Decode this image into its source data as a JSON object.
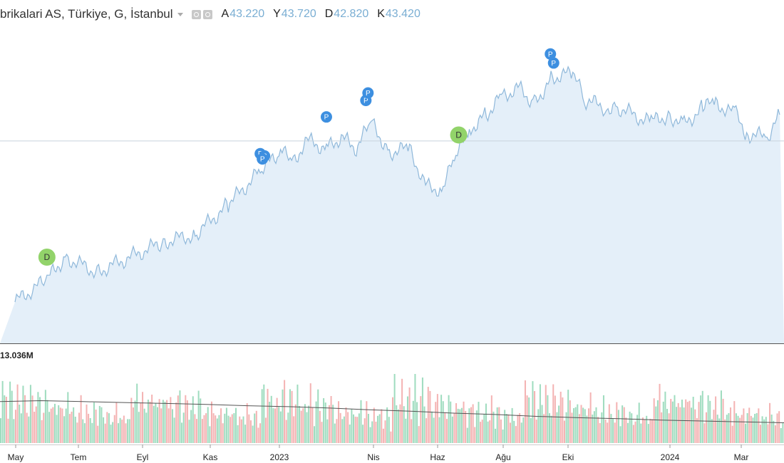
{
  "legend": {
    "symbol": "brikalari AS, Türkiye, G, İstanbul",
    "settings_icon": "eye-icon",
    "gear_icon": "gear-icon",
    "open_key": "A",
    "open": "43.220",
    "high_key": "Y",
    "high": "43.720",
    "low_key": "D",
    "low": "42.820",
    "close_key": "K",
    "close": "43.420"
  },
  "volume_label": "13.036M",
  "colors": {
    "line": "#8fb8da",
    "area": "#e4eff9",
    "vol_up": "#9fdcbf",
    "vol_down": "#f4b3b3",
    "marker_p": "#3d8fe0",
    "marker_d": "#92d36a",
    "hline": "#c8d3dd"
  },
  "chart_data": {
    "type": "area",
    "x": [
      "2022-04-15",
      "2022-05-15",
      "2022-06-01",
      "2022-07-01",
      "2022-08-01",
      "2022-09-01",
      "2022-10-01",
      "2022-11-01",
      "2022-12-01",
      "2022-12-20",
      "2023-01-01",
      "2023-01-15",
      "2023-02-01",
      "2023-02-15",
      "2023-03-01",
      "2023-03-15",
      "2023-04-01",
      "2023-04-20",
      "2023-05-05",
      "2023-05-20",
      "2023-06-01",
      "2023-06-15",
      "2023-07-01",
      "2023-07-15",
      "2023-08-01",
      "2023-08-15",
      "2023-09-01",
      "2023-09-20",
      "2023-10-01",
      "2023-10-20",
      "2023-11-01",
      "2023-12-01",
      "2023-12-20",
      "2024-01-01",
      "2024-01-20",
      "2024-02-01",
      "2024-02-20",
      "2024-03-01",
      "2024-03-20",
      "2024-04-01"
    ],
    "y": [
      25.5,
      28.5,
      31.5,
      29.5,
      31.5,
      33.5,
      34.5,
      38.5,
      43.0,
      45.5,
      44.5,
      47.0,
      46.0,
      47.5,
      46.0,
      49.5,
      45.5,
      46.0,
      41.0,
      40.5,
      44.5,
      48.5,
      50.5,
      53.0,
      54.0,
      52.0,
      55.5,
      56.0,
      52.5,
      51.5,
      51.5,
      49.5,
      50.5,
      49.0,
      51.5,
      52.0,
      50.5,
      48.0,
      47.5,
      50.5
    ],
    "ref_level": 47.0,
    "ylim": [
      20,
      62
    ],
    "x_ticks": [
      "May",
      "Tem",
      "Eyl",
      "Kas",
      "2023",
      "Nis",
      "Haz",
      "Ağu",
      "Eki",
      "2024",
      "Mar"
    ],
    "markers": [
      {
        "label": "D",
        "x": "2022-05-15",
        "y": 31.5
      },
      {
        "label": "P",
        "x": "2022-12-01",
        "y": 45.3
      },
      {
        "label": "P",
        "x": "2022-12-05",
        "y": 45.0
      },
      {
        "label": "P",
        "x": "2022-12-03",
        "y": 44.6
      },
      {
        "label": "P",
        "x": "2023-02-01",
        "y": 50.2
      },
      {
        "label": "P",
        "x": "2023-03-10",
        "y": 52.4
      },
      {
        "label": "P",
        "x": "2023-03-12",
        "y": 53.4
      },
      {
        "label": "D",
        "x": "2023-06-05",
        "y": 47.8
      },
      {
        "label": "P",
        "x": "2023-08-30",
        "y": 58.6
      },
      {
        "label": "P",
        "x": "2023-09-02",
        "y": 57.4
      }
    ],
    "volume_series": {
      "name": "Volume",
      "values": [
        9,
        12,
        8,
        10,
        7,
        11,
        9,
        6,
        8,
        10,
        7,
        9,
        12,
        8,
        6,
        9,
        11,
        8,
        7,
        10,
        9,
        8,
        6,
        7,
        9,
        8,
        10,
        7,
        6,
        8,
        9,
        7,
        6,
        8,
        7,
        6,
        9,
        8,
        7,
        6,
        5,
        7,
        6,
        8,
        5,
        6,
        7,
        5,
        6,
        5,
        7,
        6,
        5,
        8,
        6,
        5,
        7,
        6,
        5,
        4,
        6,
        5,
        7,
        5,
        6,
        4,
        5,
        6,
        5,
        4
      ],
      "avg": [
        9.0,
        9.2,
        9.0,
        8.8,
        8.6,
        8.4,
        8.1,
        7.9,
        7.6,
        7.2,
        6.9,
        6.5,
        6.2,
        5.8,
        5.5,
        5.3,
        5.0,
        4.8,
        4.6,
        4.4
      ],
      "max": 15
    }
  }
}
